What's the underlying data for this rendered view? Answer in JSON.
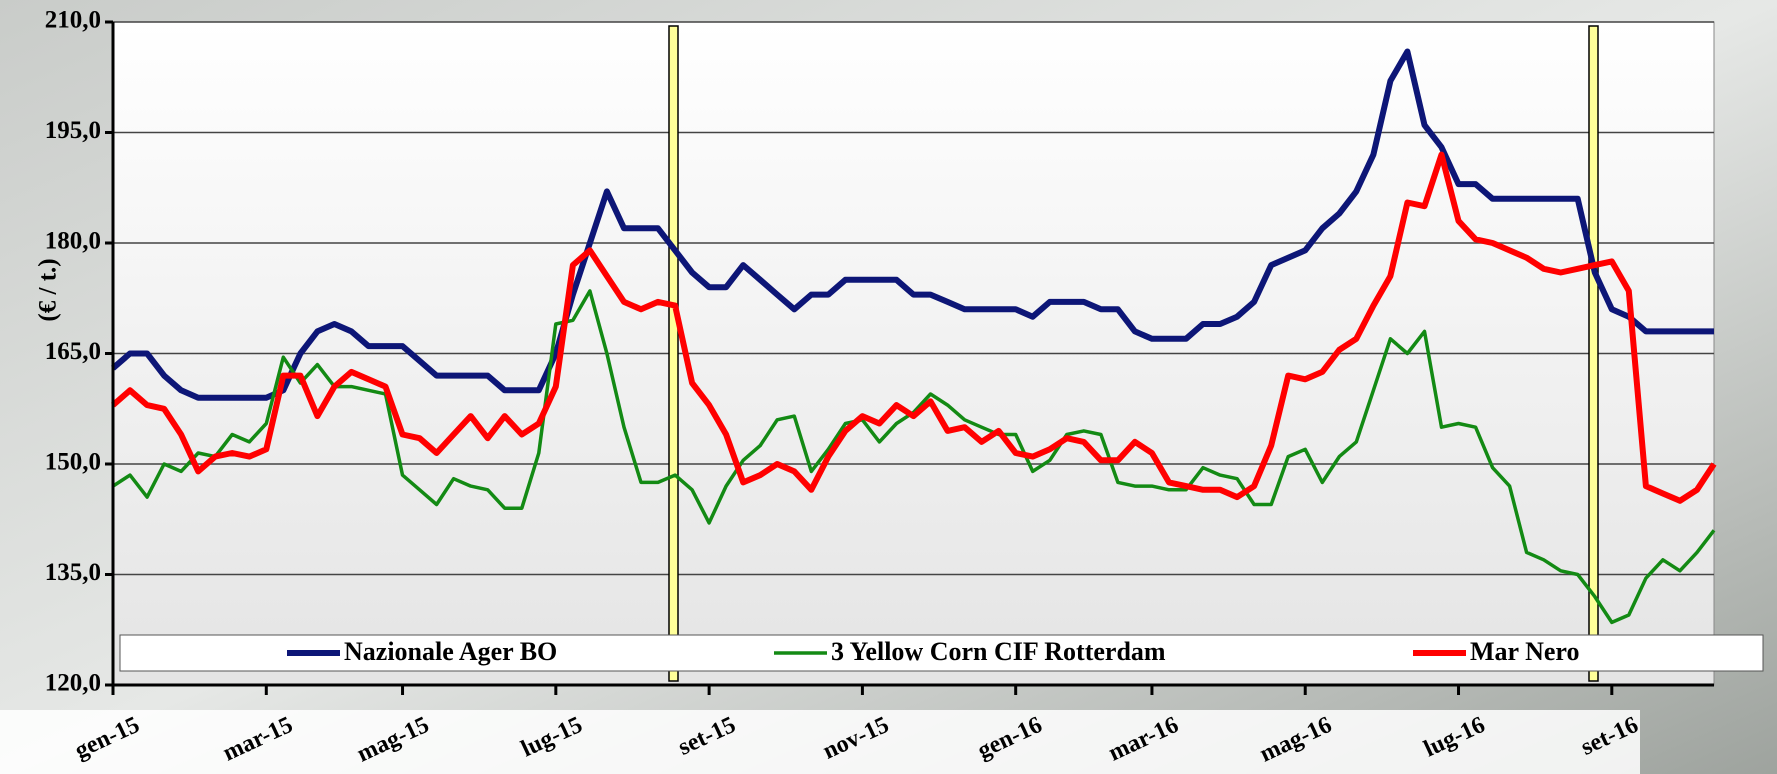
{
  "chart_data": {
    "type": "line",
    "y_label": "(€ / t.)",
    "categories": [
      "gen-15",
      null,
      null,
      null,
      null,
      null,
      null,
      null,
      null,
      "mar-15",
      null,
      null,
      null,
      null,
      null,
      null,
      null,
      "mag-15",
      null,
      null,
      null,
      null,
      null,
      null,
      null,
      null,
      "lug-15",
      null,
      null,
      null,
      null,
      null,
      null,
      null,
      null,
      "set-15",
      null,
      null,
      null,
      null,
      null,
      null,
      null,
      null,
      "nov-15",
      null,
      null,
      null,
      null,
      null,
      null,
      null,
      null,
      "gen-16",
      null,
      null,
      null,
      null,
      null,
      null,
      null,
      "mar-16",
      null,
      null,
      null,
      null,
      null,
      null,
      null,
      null,
      "mag-16",
      null,
      null,
      null,
      null,
      null,
      null,
      null,
      null,
      "lug-16",
      null,
      null,
      null,
      null,
      null,
      null,
      null,
      null,
      "set-16",
      null,
      null,
      null,
      null,
      null,
      null
    ],
    "series": [
      {
        "name": "Nazionale Ager BO",
        "color": "#0d1677",
        "width": 6,
        "values": [
          163,
          165,
          165,
          162,
          160,
          159,
          159,
          159,
          159,
          159,
          160,
          165,
          168,
          169,
          168,
          166,
          166,
          166,
          164,
          162,
          162,
          162,
          162,
          160,
          160,
          160,
          165,
          173,
          180,
          187,
          182,
          182,
          182,
          179,
          176,
          174,
          174,
          177,
          175,
          173,
          171,
          173,
          173,
          175,
          175,
          175,
          175,
          173,
          173,
          172,
          171,
          171,
          171,
          171,
          170,
          172,
          172,
          172,
          171,
          171,
          168,
          167,
          167,
          167,
          169,
          169,
          170,
          172,
          177,
          178,
          179,
          182,
          184,
          187,
          192,
          202,
          206,
          196,
          193,
          188,
          188,
          186,
          186,
          186,
          186,
          186,
          186,
          176,
          171,
          170,
          168,
          168,
          168,
          168,
          168
        ]
      },
      {
        "name": "3 Yellow Corn CIF Rotterdam",
        "color": "#138a14",
        "width": 3.5,
        "values": [
          147,
          148.5,
          145.5,
          150,
          149,
          151.5,
          151,
          154,
          153,
          155.5,
          164.5,
          161,
          163.5,
          160.5,
          160.5,
          160,
          159.5,
          148.5,
          146.5,
          144.5,
          148,
          147,
          146.5,
          144,
          144,
          151.5,
          169,
          169.5,
          173.5,
          165,
          155,
          147.5,
          147.5,
          148.5,
          146.5,
          142,
          147,
          150.5,
          152.5,
          156,
          156.5,
          149,
          152,
          155.5,
          156,
          153,
          155.5,
          157,
          159.5,
          158,
          156,
          155,
          154,
          154,
          149,
          150.5,
          154,
          154.5,
          154,
          147.5,
          147,
          147,
          146.5,
          146.5,
          149.5,
          148.5,
          148,
          144.5,
          144.5,
          151,
          152,
          147.5,
          151,
          153,
          160,
          167,
          165,
          168,
          155,
          155.5,
          155,
          149.5,
          147,
          138,
          137,
          135.5,
          135,
          132,
          128.5,
          129.5,
          134.5,
          137,
          135.5,
          138,
          141
        ]
      },
      {
        "name": "Mar Nero",
        "color": "#ff0000",
        "width": 6,
        "values": [
          158,
          160,
          158,
          157.5,
          154,
          149,
          151,
          151.5,
          151,
          152,
          162,
          162,
          156.5,
          160.5,
          162.5,
          161.5,
          160.5,
          154,
          153.5,
          151.5,
          154,
          156.5,
          153.5,
          156.5,
          154,
          155.5,
          160.5,
          177,
          179,
          175.5,
          172,
          171,
          172,
          171.5,
          161,
          158,
          154,
          147.5,
          148.5,
          150,
          149,
          146.5,
          151,
          154.5,
          156.5,
          155.5,
          158,
          156.5,
          158.5,
          154.5,
          155,
          153,
          154.5,
          151.5,
          151,
          152,
          153.5,
          153,
          150.5,
          150.5,
          153,
          151.5,
          147.5,
          147,
          146.5,
          146.5,
          145.5,
          147,
          152.5,
          162,
          161.5,
          162.5,
          165.5,
          167,
          171.5,
          175.5,
          185.5,
          185,
          192,
          183,
          180.5,
          180,
          179,
          178,
          176.5,
          176,
          176.5,
          177,
          177.5,
          173.5,
          147,
          146,
          145,
          146.5,
          150
        ]
      }
    ],
    "ylim": [
      120,
      210
    ],
    "yticks": [
      {
        "value": 120,
        "label": "120,0"
      },
      {
        "value": 135,
        "label": "135,0"
      },
      {
        "value": 150,
        "label": "150,0"
      },
      {
        "value": 165,
        "label": "165,0"
      },
      {
        "value": 180,
        "label": "180,0"
      },
      {
        "value": 195,
        "label": "195,0"
      },
      {
        "value": 210,
        "label": "210,0"
      }
    ],
    "grid": true
  }
}
